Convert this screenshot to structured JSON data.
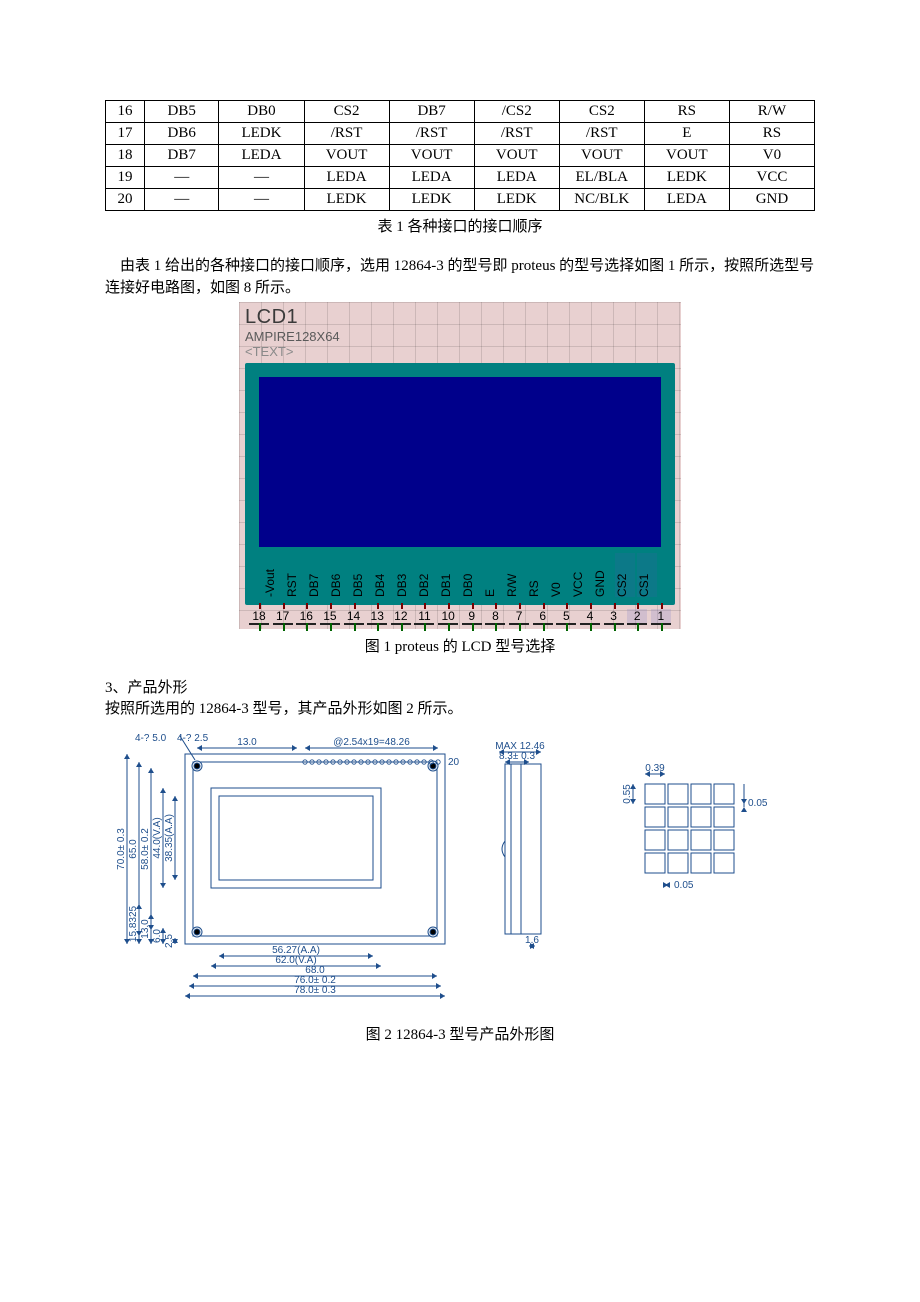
{
  "table": {
    "rows": [
      [
        "16",
        "DB5",
        "DB0",
        "CS2",
        "DB7",
        "/CS2",
        "CS2",
        "RS",
        "R/W"
      ],
      [
        "17",
        "DB6",
        "LEDK",
        "/RST",
        "/RST",
        "/RST",
        "/RST",
        "E",
        "RS"
      ],
      [
        "18",
        "DB7",
        "LEDA",
        "VOUT",
        "VOUT",
        "VOUT",
        "VOUT",
        "VOUT",
        "V0"
      ],
      [
        "19",
        "—",
        "—",
        "LEDA",
        "LEDA",
        "LEDA",
        "EL/BLA",
        "LEDK",
        "VCC"
      ],
      [
        "20",
        "—",
        "—",
        "LEDK",
        "LEDK",
        "LEDK",
        "NC/BLK",
        "LEDA",
        "GND"
      ]
    ],
    "caption": "表 1    各种接口的接口顺序"
  },
  "para1": "由表 1 给出的各种接口的接口顺序，选用 12864-3 的型号即 proteus 的型号选择如图 1 所示，按照所选型号连接好电路图，如图 8 所示。",
  "lcd": {
    "title": "LCD1",
    "subtitle": "AMPIRE128X64",
    "placeholder": "<TEXT>",
    "teal": "#008080",
    "screen_color": "#00008b",
    "bg_color": "#e8d0d0",
    "pin_labels": [
      "-Vout",
      "RST",
      "DB7",
      "DB6",
      "DB5",
      "DB4",
      "DB3",
      "DB2",
      "DB1",
      "DB0",
      "E",
      "R/W",
      "RS",
      "V0",
      "VCC",
      "GND",
      "CS2",
      "CS1"
    ],
    "pin_numbers": [
      "18",
      "17",
      "16",
      "15",
      "14",
      "13",
      "12",
      "11",
      "10",
      "9",
      "8",
      "7",
      "6",
      "5",
      "4",
      "3",
      "2",
      "1"
    ],
    "highlighted_cs": [
      "CS2",
      "CS1"
    ]
  },
  "fig1_caption": "图 1    proteus 的 LCD 型号选择",
  "section3_head": "3、产品外形",
  "para2": "按照所选用的 12864-3 型号，其产品外形如图 2 所示。",
  "mech": {
    "stroke": "#1e4e8c",
    "front": {
      "hole_note": "4-? 5.0",
      "hole_note2": "4-? 2.5",
      "top_dim1": "13.0",
      "top_dim2": "@2.54x19=48.26",
      "pin_end": "20",
      "v_dims": [
        "70.0± 0.3",
        "65.0",
        "58.0± 0.2",
        "44.0(V.A)",
        "38.35(A.A)"
      ],
      "b_dims_left": [
        "2.5",
        "6.0",
        "13.0",
        "15.8325"
      ],
      "b_dims": [
        "56.27(A.A)",
        "62.0(V.A)",
        "68.0",
        "76.0± 0.2",
        "78.0± 0.3"
      ]
    },
    "side": {
      "top": "MAX 12.46",
      "mid": "8.3± 0.3",
      "bot": "1.6"
    },
    "pixel": {
      "w": "0.39",
      "h": "0.55",
      "gap_h": "0.05",
      "gap_w": "0.05"
    }
  },
  "fig2_caption": "图 2    12864-3 型号产品外形图"
}
